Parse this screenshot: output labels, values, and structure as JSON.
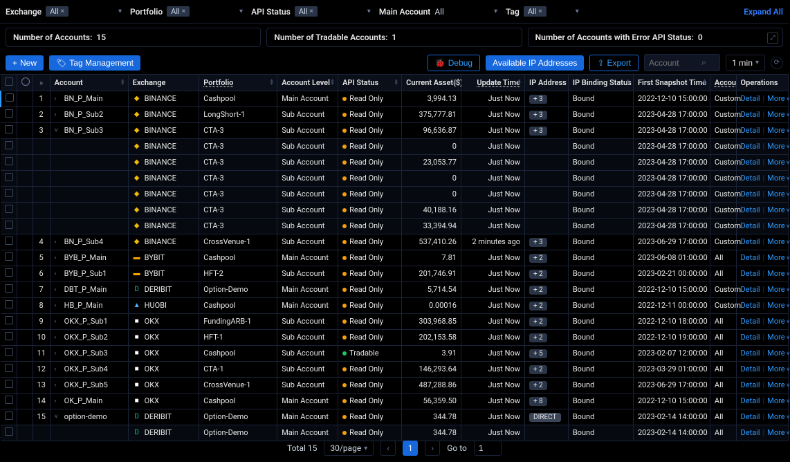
{
  "colors": {
    "bg": "#000000",
    "border": "#1a2338",
    "primary": "#1668dc",
    "link": "#2e9bff",
    "chip_bg": "#2a3548",
    "text": "#e6e6e6",
    "muted": "#6b7b9a",
    "dot_readonly": "#f59e0b",
    "dot_tradable": "#22c55e"
  },
  "filters": {
    "exchange": {
      "label": "Exchange",
      "value": "All",
      "dismiss": true
    },
    "portfolio": {
      "label": "Portfolio",
      "value": "All",
      "dismiss": true
    },
    "api_status": {
      "label": "API Status",
      "value": "All",
      "dismiss": true
    },
    "main_account": {
      "label": "Main Account",
      "value": "All",
      "dismiss": false
    },
    "tag": {
      "label": "Tag",
      "value": "All",
      "dismiss": true
    },
    "expand_all": "Expand All"
  },
  "summary": {
    "accounts_label": "Number of Accounts:",
    "accounts_value": "15",
    "tradable_label": "Number of Tradable Accounts:",
    "tradable_value": "1",
    "error_label": "Number of Accounts with Error API Status:",
    "error_value": "0"
  },
  "toolbar": {
    "new_label": "New",
    "tag_mgmt_label": "Tag Management",
    "debug_label": "Debug",
    "avail_ip_label": "Available IP Addresses",
    "export_label": "Export",
    "search_placeholder": "Account",
    "refresh_value": "1 min"
  },
  "columns": {
    "account": "Account",
    "exchange": "Exchange",
    "portfolio": "Portfolio",
    "account_level": "Account Level",
    "api_status": "API Status",
    "current_asset": "Current Asset($)",
    "update_time": "Update Time",
    "ip_address": "IP Address",
    "ip_binding": "IP Binding Status",
    "first_snapshot": "First Snapshot Time",
    "account_trunc": "Accou",
    "operations": "Operations",
    "ops_detail": "Detail",
    "ops_more": "More"
  },
  "exchange_logos": {
    "BINANCE": {
      "text": "◆",
      "color": "#f0b90b"
    },
    "BYBIT": {
      "text": "▬",
      "color": "#f7a600"
    },
    "DERIBIT": {
      "text": "D",
      "color": "#1abc9c"
    },
    "HUOBI": {
      "text": "▲",
      "color": "#4db8ff"
    },
    "OKX": {
      "text": "■",
      "color": "#ffffff"
    }
  },
  "rows": [
    {
      "idx": 1,
      "toggle": "right",
      "account": "BN_P_Main",
      "exchange": "BINANCE",
      "portfolio": "Cashpool",
      "level": "Main Account",
      "api": "Read Only",
      "api_kind": "readonly",
      "asset": "3,994.13",
      "update": "Just Now",
      "ip": "+ 3",
      "bind": "Bound",
      "snap": "2022-12-10 15:00:00",
      "acq": "Custom",
      "selected": true
    },
    {
      "idx": 2,
      "toggle": "right",
      "account": "BN_P_Sub2",
      "exchange": "BINANCE",
      "portfolio": "LongShort-1",
      "level": "Sub Account",
      "api": "Read Only",
      "api_kind": "readonly",
      "asset": "375,777.81",
      "update": "Just Now",
      "ip": "+ 3",
      "bind": "Bound",
      "snap": "2023-04-28 17:00:00",
      "acq": "Custom"
    },
    {
      "idx": 3,
      "toggle": "down",
      "account": "BN_P_Sub3",
      "exchange": "BINANCE",
      "portfolio": "CTA-3",
      "level": "Sub Account",
      "api": "Read Only",
      "api_kind": "readonly",
      "asset": "96,636.87",
      "update": "Just Now",
      "ip": "+ 3",
      "bind": "Bound",
      "snap": "2023-04-28 17:00:00",
      "acq": "Custom"
    },
    {
      "child": true,
      "account": "",
      "exchange": "BINANCE",
      "portfolio": "CTA-3",
      "level": "Sub Account",
      "api": "Read Only",
      "api_kind": "readonly",
      "asset": "0",
      "update": "Just Now",
      "ip": "",
      "bind": "Bound",
      "snap": "2023-04-28 17:00:00",
      "acq": "Custom"
    },
    {
      "child": true,
      "account": "",
      "exchange": "BINANCE",
      "portfolio": "CTA-3",
      "level": "Sub Account",
      "api": "Read Only",
      "api_kind": "readonly",
      "asset": "23,053.77",
      "update": "Just Now",
      "ip": "",
      "bind": "Bound",
      "snap": "2023-04-28 17:00:00",
      "acq": "Custom"
    },
    {
      "child": true,
      "account": "",
      "exchange": "BINANCE",
      "portfolio": "CTA-3",
      "level": "Sub Account",
      "api": "Read Only",
      "api_kind": "readonly",
      "asset": "0",
      "update": "Just Now",
      "ip": "",
      "bind": "Bound",
      "snap": "2023-04-28 17:00:00",
      "acq": "Custom"
    },
    {
      "child": true,
      "account": "",
      "exchange": "BINANCE",
      "portfolio": "CTA-3",
      "level": "Sub Account",
      "api": "Read Only",
      "api_kind": "readonly",
      "asset": "0",
      "update": "Just Now",
      "ip": "",
      "bind": "Bound",
      "snap": "2023-04-28 17:00:00",
      "acq": "Custom"
    },
    {
      "child": true,
      "account": "",
      "exchange": "BINANCE",
      "portfolio": "CTA-3",
      "level": "Sub Account",
      "api": "Read Only",
      "api_kind": "readonly",
      "asset": "40,188.16",
      "update": "Just Now",
      "ip": "",
      "bind": "Bound",
      "snap": "2023-04-28 17:00:00",
      "acq": "Custom"
    },
    {
      "child": true,
      "account": "",
      "exchange": "BINANCE",
      "portfolio": "CTA-3",
      "level": "Sub Account",
      "api": "Read Only",
      "api_kind": "readonly",
      "asset": "33,394.94",
      "update": "Just Now",
      "ip": "",
      "bind": "Bound",
      "snap": "2023-04-28 17:00:00",
      "acq": "Custom"
    },
    {
      "idx": 4,
      "toggle": "right",
      "account": "BN_P_Sub4",
      "exchange": "BINANCE",
      "portfolio": "CrossVenue-1",
      "level": "Sub Account",
      "api": "Read Only",
      "api_kind": "readonly",
      "asset": "537,410.26",
      "update": "2 minutes ago",
      "ip": "+ 3",
      "bind": "Bound",
      "snap": "2023-06-29 17:00:00",
      "acq": "Custom"
    },
    {
      "idx": 5,
      "toggle": "right",
      "account": "BYB_P_Main",
      "exchange": "BYBIT",
      "portfolio": "Cashpool",
      "level": "Main Account",
      "api": "Read Only",
      "api_kind": "readonly",
      "asset": "7.81",
      "update": "Just Now",
      "ip": "+ 2",
      "bind": "Bound",
      "snap": "2023-06-08 01:00:00",
      "acq": "All"
    },
    {
      "idx": 6,
      "toggle": "right",
      "account": "BYB_P_Sub1",
      "exchange": "BYBIT",
      "portfolio": "HFT-2",
      "level": "Sub Account",
      "api": "Read Only",
      "api_kind": "readonly",
      "asset": "201,746.91",
      "update": "Just Now",
      "ip": "+ 2",
      "bind": "Bound",
      "snap": "2023-02-21 00:00:00",
      "acq": "All"
    },
    {
      "idx": 7,
      "toggle": "right",
      "account": "DBT_P_Main",
      "exchange": "DERIBIT",
      "portfolio": "Option-Demo",
      "level": "Main Account",
      "api": "Read Only",
      "api_kind": "readonly",
      "asset": "5,714.54",
      "update": "Just Now",
      "ip": "+ 2",
      "bind": "Bound",
      "snap": "2022-12-10 15:00:00",
      "acq": "Custom"
    },
    {
      "idx": 8,
      "toggle": "right",
      "account": "HB_P_Main",
      "exchange": "HUOBI",
      "portfolio": "Cashpool",
      "level": "Main Account",
      "api": "Read Only",
      "api_kind": "readonly",
      "asset": "0.00016",
      "update": "Just Now",
      "ip": "+ 2",
      "bind": "Bound",
      "snap": "2022-12-11 00:00:00",
      "acq": "Custom"
    },
    {
      "idx": 9,
      "toggle": "right",
      "account": "OKX_P_Sub1",
      "exchange": "OKX",
      "portfolio": "FundingARB-1",
      "level": "Sub Account",
      "api": "Read Only",
      "api_kind": "readonly",
      "asset": "303,968.85",
      "update": "Just Now",
      "ip": "+ 2",
      "bind": "Bound",
      "snap": "2022-12-10 18:00:00",
      "acq": "All"
    },
    {
      "idx": 10,
      "toggle": "right",
      "account": "OKX_P_Sub2",
      "exchange": "OKX",
      "portfolio": "HFT-1",
      "level": "Sub Account",
      "api": "Read Only",
      "api_kind": "readonly",
      "asset": "202,153.58",
      "update": "Just Now",
      "ip": "+ 2",
      "bind": "Bound",
      "snap": "2022-12-10 19:00:00",
      "acq": "All"
    },
    {
      "idx": 11,
      "toggle": "right",
      "account": "OKX_P_Sub3",
      "exchange": "OKX",
      "portfolio": "Cashpool",
      "level": "Sub Account",
      "api": "Tradable",
      "api_kind": "tradable",
      "asset": "3.91",
      "update": "Just Now",
      "ip": "+ 5",
      "bind": "Bound",
      "snap": "2023-02-07 12:00:00",
      "acq": "All"
    },
    {
      "idx": 12,
      "toggle": "right",
      "account": "OKX_P_Sub4",
      "exchange": "OKX",
      "portfolio": "CTA-1",
      "level": "Sub Account",
      "api": "Read Only",
      "api_kind": "readonly",
      "asset": "146,293.64",
      "update": "Just Now",
      "ip": "+ 2",
      "bind": "Bound",
      "snap": "2023-03-29 01:00:00",
      "acq": "All"
    },
    {
      "idx": 13,
      "toggle": "right",
      "account": "OKX_P_Sub5",
      "exchange": "OKX",
      "portfolio": "CrossVenue-1",
      "level": "Sub Account",
      "api": "Read Only",
      "api_kind": "readonly",
      "asset": "487,288.86",
      "update": "Just Now",
      "ip": "+ 2",
      "bind": "Bound",
      "snap": "2023-06-29 17:00:00",
      "acq": "All"
    },
    {
      "idx": 14,
      "toggle": "right",
      "account": "OK_P_Main",
      "exchange": "OKX",
      "portfolio": "Cashpool",
      "level": "Main Account",
      "api": "Read Only",
      "api_kind": "readonly",
      "asset": "56,359.50",
      "update": "Just Now",
      "ip": "+ 8",
      "bind": "Bound",
      "snap": "2022-12-10 15:00:00",
      "acq": "All"
    },
    {
      "idx": 15,
      "toggle": "down",
      "account": "option-demo",
      "exchange": "DERIBIT",
      "portfolio": "Option-Demo",
      "level": "Main Account",
      "api": "Read Only",
      "api_kind": "readonly",
      "asset": "344.78",
      "update": "Just Now",
      "ip": "DIRECT",
      "ip_direct": true,
      "bind": "Bound",
      "snap": "2023-02-14 14:00:00",
      "acq": "All"
    },
    {
      "child": true,
      "account": "",
      "exchange": "DERIBIT",
      "portfolio": "Option-Demo",
      "level": "Main Account",
      "api": "Read Only",
      "api_kind": "readonly",
      "asset": "344.78",
      "update": "Just Now",
      "ip": "",
      "bind": "Bound",
      "snap": "2023-02-14 14:00:00",
      "acq": "All"
    }
  ],
  "pagination": {
    "total_label": "Total 15",
    "page_size": "30/page",
    "current_page": "1",
    "goto_label": "Go to",
    "goto_value": "1"
  },
  "col_widths": {
    "cb": 22,
    "radio": 22,
    "idx": 24,
    "account": 108,
    "exchange": 98,
    "portfolio": 108,
    "level": 84,
    "api": 88,
    "asset": 82,
    "update": 88,
    "ip": 60,
    "bind": 90,
    "snap": 106,
    "acq": 36,
    "ops": 72
  }
}
